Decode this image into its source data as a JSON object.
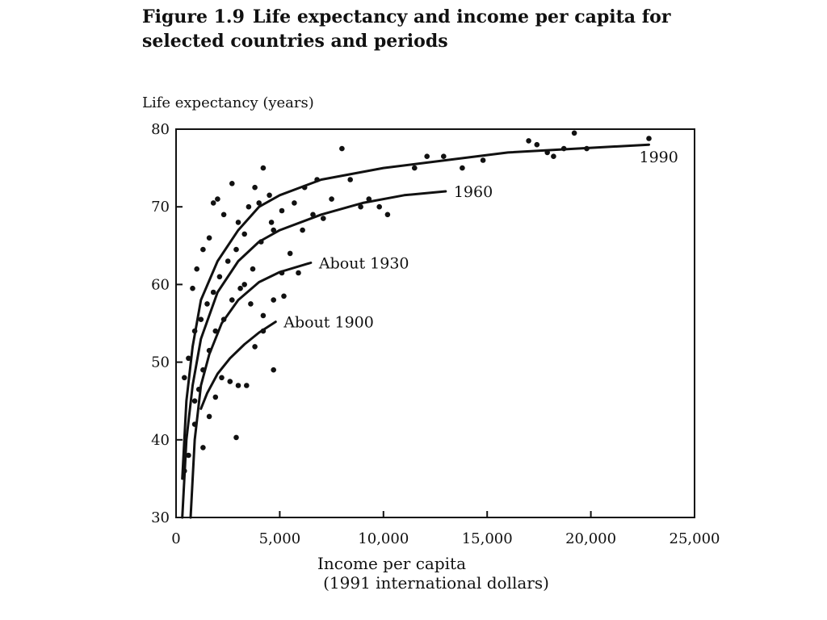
{
  "figure": {
    "number": "Figure 1.9",
    "title": "Life expectancy and income per capita for selected countries and periods"
  },
  "chart_data": {
    "type": "scatter",
    "title": "Life expectancy and income per capita for selected countries and periods",
    "ylabel": "Life expectancy (years)",
    "xlabel": "Income per capita",
    "xlabel_sub": "(1991 international dollars)",
    "xlim": [
      0,
      25000
    ],
    "ylim": [
      30,
      80
    ],
    "xticks": [
      {
        "value": 0,
        "label": "0"
      },
      {
        "value": 5000,
        "label": "5,000"
      },
      {
        "value": 10000,
        "label": "10,000"
      },
      {
        "value": 15000,
        "label": "15,000"
      },
      {
        "value": 20000,
        "label": "20,000"
      },
      {
        "value": 25000,
        "label": "25,000"
      }
    ],
    "yticks": [
      {
        "value": 30,
        "label": "30"
      },
      {
        "value": 40,
        "label": "40"
      },
      {
        "value": 50,
        "label": "50"
      },
      {
        "value": 60,
        "label": "60"
      },
      {
        "value": 70,
        "label": "70"
      },
      {
        "value": 80,
        "label": "80"
      }
    ],
    "grid": false,
    "legend": "none",
    "curves": [
      {
        "name": "1990",
        "label": "1990",
        "points": [
          [
            300,
            35
          ],
          [
            500,
            45
          ],
          [
            800,
            52
          ],
          [
            1200,
            58
          ],
          [
            2000,
            63
          ],
          [
            3000,
            67
          ],
          [
            4000,
            70
          ],
          [
            5000,
            71.5
          ],
          [
            7000,
            73.5
          ],
          [
            10000,
            75
          ],
          [
            13000,
            76
          ],
          [
            16000,
            77
          ],
          [
            20000,
            77.6
          ],
          [
            22800,
            78
          ]
        ]
      },
      {
        "name": "1960",
        "label": "1960",
        "points": [
          [
            300,
            30
          ],
          [
            500,
            40
          ],
          [
            800,
            47
          ],
          [
            1200,
            53
          ],
          [
            2000,
            59
          ],
          [
            3000,
            63
          ],
          [
            4000,
            65.5
          ],
          [
            5000,
            67
          ],
          [
            7000,
            69
          ],
          [
            9000,
            70.5
          ],
          [
            11000,
            71.5
          ],
          [
            13000,
            72
          ]
        ]
      },
      {
        "name": "About 1930",
        "label": "About 1930",
        "points": [
          [
            700,
            30
          ],
          [
            900,
            40
          ],
          [
            1200,
            47
          ],
          [
            1600,
            51
          ],
          [
            2200,
            55
          ],
          [
            3000,
            58
          ],
          [
            4000,
            60.3
          ],
          [
            5000,
            61.6
          ],
          [
            6500,
            62.8
          ]
        ]
      },
      {
        "name": "About 1900",
        "label": "About 1900",
        "points": [
          [
            1200,
            44
          ],
          [
            1500,
            46
          ],
          [
            2000,
            48.5
          ],
          [
            2600,
            50.5
          ],
          [
            3300,
            52.3
          ],
          [
            4000,
            53.8
          ],
          [
            4800,
            55.2
          ]
        ]
      }
    ],
    "points": [
      [
        800,
        59.5
      ],
      [
        1000,
        62
      ],
      [
        1300,
        64.5
      ],
      [
        1600,
        66
      ],
      [
        1800,
        70.5
      ],
      [
        2000,
        71
      ],
      [
        2300,
        69
      ],
      [
        2700,
        73
      ],
      [
        3000,
        68
      ],
      [
        3300,
        66.5
      ],
      [
        3500,
        70
      ],
      [
        3800,
        72.5
      ],
      [
        4000,
        70.5
      ],
      [
        4200,
        75
      ],
      [
        4500,
        71.5
      ],
      [
        4700,
        67
      ],
      [
        5100,
        69.5
      ],
      [
        5700,
        70.5
      ],
      [
        6200,
        72.5
      ],
      [
        6800,
        73.5
      ],
      [
        7500,
        71
      ],
      [
        8000,
        77.5
      ],
      [
        8400,
        73.5
      ],
      [
        8900,
        70
      ],
      [
        9300,
        71
      ],
      [
        9800,
        70
      ],
      [
        10200,
        69
      ],
      [
        11500,
        75
      ],
      [
        12100,
        76.5
      ],
      [
        12900,
        76.5
      ],
      [
        13800,
        75
      ],
      [
        14800,
        76
      ],
      [
        17000,
        78.5
      ],
      [
        17400,
        78
      ],
      [
        17900,
        77
      ],
      [
        18200,
        76.5
      ],
      [
        18700,
        77.5
      ],
      [
        19200,
        79.5
      ],
      [
        19800,
        77.5
      ],
      [
        22800,
        78.8
      ],
      [
        400,
        48
      ],
      [
        600,
        50.5
      ],
      [
        900,
        54
      ],
      [
        1200,
        55.5
      ],
      [
        1500,
        57.5
      ],
      [
        1800,
        59
      ],
      [
        2100,
        61
      ],
      [
        2500,
        63
      ],
      [
        2900,
        64.5
      ],
      [
        3300,
        60
      ],
      [
        3700,
        62
      ],
      [
        4100,
        65.5
      ],
      [
        4600,
        68
      ],
      [
        5100,
        61.5
      ],
      [
        5500,
        64
      ],
      [
        6100,
        67
      ],
      [
        6600,
        69
      ],
      [
        7100,
        68.5
      ],
      [
        900,
        45
      ],
      [
        1100,
        46.5
      ],
      [
        1300,
        49
      ],
      [
        1600,
        51.5
      ],
      [
        1900,
        54
      ],
      [
        2300,
        55.5
      ],
      [
        2700,
        58
      ],
      [
        3100,
        59.5
      ],
      [
        3600,
        57.5
      ],
      [
        4200,
        56
      ],
      [
        4700,
        58
      ],
      [
        5200,
        58.5
      ],
      [
        5900,
        61.5
      ],
      [
        600,
        38
      ],
      [
        900,
        42
      ],
      [
        1300,
        39
      ],
      [
        1600,
        43
      ],
      [
        1900,
        45.5
      ],
      [
        2200,
        48
      ],
      [
        2600,
        47.5
      ],
      [
        3000,
        47
      ],
      [
        3400,
        47
      ],
      [
        3800,
        52
      ],
      [
        4200,
        54
      ],
      [
        4700,
        49
      ],
      [
        2900,
        40.3
      ],
      [
        400,
        36
      ]
    ]
  }
}
